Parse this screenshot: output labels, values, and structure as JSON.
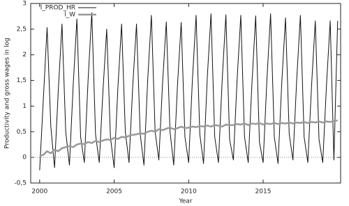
{
  "chart_data": {
    "type": "line",
    "xlabel": "Year",
    "ylabel": "Productivity and gross wages in log",
    "x": [
      2000,
      2000.25,
      2000.5,
      2000.75,
      2001,
      2001.25,
      2001.5,
      2001.75,
      2002,
      2002.25,
      2002.5,
      2002.75,
      2003,
      2003.25,
      2003.5,
      2003.75,
      2004,
      2004.25,
      2004.5,
      2004.75,
      2005,
      2005.25,
      2005.5,
      2005.75,
      2006,
      2006.25,
      2006.5,
      2006.75,
      2007,
      2007.25,
      2007.5,
      2007.75,
      2008,
      2008.25,
      2008.5,
      2008.75,
      2009,
      2009.25,
      2009.5,
      2009.75,
      2010,
      2010.25,
      2010.5,
      2010.75,
      2011,
      2011.25,
      2011.5,
      2011.75,
      2012,
      2012.25,
      2012.5,
      2012.75,
      2013,
      2013.25,
      2013.5,
      2013.75,
      2014,
      2014.25,
      2014.5,
      2014.75,
      2015,
      2015.25,
      2015.5,
      2015.75,
      2016,
      2016.25,
      2016.5,
      2016.75,
      2017,
      2017.25,
      2017.5,
      2017.75,
      2018,
      2018.25,
      2018.5,
      2018.75,
      2019,
      2019.25,
      2019.5,
      2019.75,
      2020
    ],
    "series": [
      {
        "name": "l_PROD_HR",
        "color": "#111111",
        "values": [
          -0.25,
          1.15,
          2.53,
          0.6,
          -0.2,
          1.3,
          2.6,
          0.5,
          -0.15,
          1.4,
          2.7,
          0.4,
          -0.1,
          1.5,
          2.82,
          0.45,
          -0.1,
          1.3,
          2.5,
          0.4,
          -0.2,
          1.35,
          2.6,
          0.5,
          -0.1,
          1.4,
          2.6,
          0.45,
          -0.15,
          1.5,
          2.77,
          0.5,
          -0.05,
          1.45,
          2.64,
          0.5,
          -0.15,
          1.4,
          2.63,
          0.4,
          -0.1,
          1.5,
          2.77,
          0.45,
          -0.12,
          1.55,
          2.8,
          0.4,
          -0.1,
          1.5,
          2.78,
          0.35,
          -0.05,
          1.5,
          2.77,
          0.4,
          -0.1,
          1.45,
          2.76,
          0.3,
          -0.1,
          1.5,
          2.8,
          0.4,
          -0.12,
          1.45,
          2.72,
          0.45,
          -0.05,
          1.5,
          2.77,
          0.4,
          -0.1,
          1.4,
          2.66,
          0.35,
          -0.1,
          1.4,
          2.66,
          -0.05,
          2.66
        ]
      },
      {
        "name": "l_W",
        "color": "#999999",
        "values": [
          0.03,
          0.05,
          0.12,
          0.08,
          0.15,
          0.12,
          0.18,
          0.2,
          0.22,
          0.2,
          0.25,
          0.27,
          0.26,
          0.3,
          0.28,
          0.32,
          0.3,
          0.33,
          0.35,
          0.34,
          0.38,
          0.36,
          0.4,
          0.39,
          0.42,
          0.44,
          0.45,
          0.47,
          0.46,
          0.5,
          0.52,
          0.5,
          0.55,
          0.53,
          0.56,
          0.58,
          0.55,
          0.57,
          0.6,
          0.57,
          0.58,
          0.6,
          0.59,
          0.61,
          0.6,
          0.62,
          0.6,
          0.63,
          0.62,
          0.6,
          0.64,
          0.63,
          0.63,
          0.65,
          0.64,
          0.66,
          0.63,
          0.66,
          0.65,
          0.67,
          0.64,
          0.66,
          0.65,
          0.67,
          0.65,
          0.67,
          0.66,
          0.68,
          0.66,
          0.68,
          0.67,
          0.69,
          0.67,
          0.69,
          0.68,
          0.7,
          0.68,
          0.7,
          0.69,
          0.71,
          0.72
        ]
      }
    ],
    "xlim": [
      1999.4,
      2020.2
    ],
    "xticks": [
      2000,
      2005,
      2010,
      2015
    ],
    "ylim": [
      -0.5,
      3
    ],
    "yticks": [
      {
        "value": -0.5,
        "label": "-0,5"
      },
      0,
      {
        "value": 0.5,
        "label": "0,5"
      },
      1,
      {
        "value": 1.5,
        "label": "1,5"
      },
      2,
      {
        "value": 2.5,
        "label": "2,5"
      },
      3
    ],
    "zero_line": true,
    "legend": "top-left"
  }
}
